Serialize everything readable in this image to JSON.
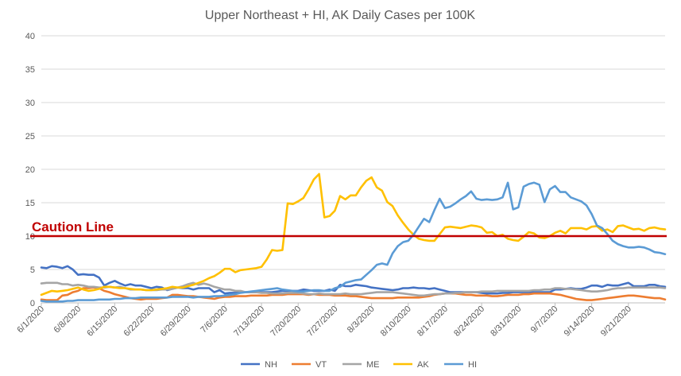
{
  "chart_data": {
    "type": "line",
    "title": "Upper Northeast + HI, AK Daily Cases per 100K",
    "xlabel": "",
    "ylabel": "",
    "ylim": [
      0,
      40
    ],
    "yticks": [
      0,
      5,
      10,
      15,
      20,
      25,
      30,
      35,
      40
    ],
    "grid": "horizontal",
    "legend_position": "bottom",
    "x_start": "2020-06-01",
    "xtick_labels": [
      "6/1/2020",
      "6/8/2020",
      "6/15/2020",
      "6/22/2020",
      "6/29/2020",
      "7/6/2020",
      "7/13/2020",
      "7/20/2020",
      "7/27/2020",
      "8/3/2020",
      "8/10/2020",
      "8/17/2020",
      "8/24/2020",
      "8/31/2020",
      "9/7/2020",
      "9/14/2020",
      "9/21/2020"
    ],
    "reference_line": {
      "label": "Caution Line",
      "value": 10,
      "color": "#c00000"
    },
    "series": [
      {
        "name": "NH",
        "color": "#4472c4",
        "values": [
          5.3,
          5.2,
          5.5,
          5.4,
          5.2,
          5.5,
          5.0,
          4.2,
          4.3,
          4.2,
          4.2,
          3.8,
          2.6,
          3.0,
          3.3,
          2.9,
          2.6,
          2.8,
          2.6,
          2.6,
          2.4,
          2.2,
          2.4,
          2.3,
          1.9,
          2.1,
          2.3,
          2.2,
          2.2,
          2.0,
          2.2,
          2.2,
          2.2,
          1.6,
          1.9,
          1.4,
          1.5,
          1.5,
          1.6,
          1.6,
          1.6,
          1.6,
          1.6,
          1.6,
          1.6,
          1.7,
          1.8,
          1.8,
          1.8,
          1.8,
          2.0,
          1.9,
          1.8,
          1.8,
          1.8,
          2.0,
          1.8,
          2.7,
          2.5,
          2.5,
          2.7,
          2.6,
          2.5,
          2.3,
          2.2,
          2.1,
          2.0,
          1.9,
          2.0,
          2.2,
          2.2,
          2.3,
          2.2,
          2.2,
          2.1,
          2.2,
          2.0,
          1.8,
          1.6,
          1.6,
          1.6,
          1.6,
          1.6,
          1.6,
          1.5,
          1.4,
          1.4,
          1.4,
          1.5,
          1.5,
          1.6,
          1.6,
          1.6,
          1.6,
          1.6,
          1.6,
          1.6,
          1.6,
          2.0,
          2.0,
          2.1,
          2.2,
          2.1,
          2.1,
          2.3,
          2.6,
          2.6,
          2.4,
          2.7,
          2.6,
          2.6,
          2.8,
          3.0,
          2.5,
          2.5,
          2.5,
          2.7,
          2.7,
          2.5,
          2.4
        ]
      },
      {
        "name": "VT",
        "color": "#ed7d31",
        "values": [
          0.5,
          0.4,
          0.4,
          0.4,
          1.1,
          1.2,
          1.6,
          1.8,
          2.2,
          2.2,
          2.3,
          2.2,
          1.8,
          1.6,
          1.3,
          1.1,
          0.9,
          0.7,
          0.6,
          0.5,
          0.6,
          0.6,
          0.6,
          0.7,
          0.8,
          1.2,
          1.2,
          1.1,
          1.0,
          1.0,
          0.9,
          0.8,
          0.7,
          0.6,
          0.8,
          0.9,
          0.9,
          1.0,
          1.0,
          1.0,
          1.1,
          1.1,
          1.1,
          1.1,
          1.2,
          1.2,
          1.2,
          1.3,
          1.3,
          1.3,
          1.3,
          1.2,
          1.3,
          1.2,
          1.2,
          1.2,
          1.1,
          1.1,
          1.1,
          1.0,
          1.0,
          0.9,
          0.8,
          0.7,
          0.7,
          0.7,
          0.7,
          0.7,
          0.8,
          0.8,
          0.8,
          0.8,
          0.8,
          0.9,
          1.0,
          1.2,
          1.3,
          1.4,
          1.4,
          1.4,
          1.3,
          1.2,
          1.2,
          1.1,
          1.1,
          1.1,
          1.0,
          1.0,
          1.1,
          1.2,
          1.2,
          1.2,
          1.3,
          1.3,
          1.4,
          1.4,
          1.4,
          1.4,
          1.3,
          1.2,
          1.0,
          0.8,
          0.6,
          0.5,
          0.4,
          0.4,
          0.5,
          0.6,
          0.7,
          0.8,
          0.9,
          1.0,
          1.1,
          1.1,
          1.0,
          0.9,
          0.8,
          0.7,
          0.7,
          0.5
        ]
      },
      {
        "name": "ME",
        "color": "#a5a5a5",
        "values": [
          2.9,
          3.0,
          3.0,
          3.0,
          2.8,
          2.8,
          2.6,
          2.7,
          2.6,
          2.4,
          2.4,
          2.3,
          2.3,
          2.4,
          2.3,
          2.4,
          2.2,
          2.0,
          2.0,
          2.0,
          1.9,
          1.9,
          1.9,
          2.0,
          2.0,
          2.1,
          2.3,
          2.5,
          2.8,
          3.0,
          2.7,
          2.9,
          2.7,
          2.4,
          2.2,
          2.0,
          2.0,
          1.8,
          1.8,
          1.6,
          1.6,
          1.6,
          1.5,
          1.5,
          1.4,
          1.4,
          1.4,
          1.5,
          1.5,
          1.5,
          1.4,
          1.3,
          1.3,
          1.4,
          1.3,
          1.3,
          1.3,
          1.3,
          1.4,
          1.3,
          1.3,
          1.3,
          1.4,
          1.5,
          1.6,
          1.6,
          1.6,
          1.6,
          1.5,
          1.4,
          1.3,
          1.2,
          1.1,
          1.1,
          1.2,
          1.3,
          1.3,
          1.4,
          1.4,
          1.5,
          1.5,
          1.6,
          1.6,
          1.6,
          1.7,
          1.7,
          1.7,
          1.8,
          1.8,
          1.8,
          1.8,
          1.8,
          1.8,
          1.8,
          1.9,
          1.9,
          2.0,
          2.0,
          2.2,
          2.2,
          2.1,
          2.1,
          2.0,
          1.9,
          1.8,
          1.7,
          1.7,
          1.8,
          1.9,
          2.1,
          2.2,
          2.2,
          2.3,
          2.3,
          2.3,
          2.3,
          2.3,
          2.3,
          2.3,
          2.2
        ]
      },
      {
        "name": "AK",
        "color": "#ffc000",
        "values": [
          1.2,
          1.5,
          1.8,
          1.7,
          1.8,
          1.9,
          2.1,
          2.3,
          2.0,
          1.8,
          1.9,
          2.1,
          2.4,
          2.4,
          2.3,
          2.2,
          2.2,
          2.1,
          2.0,
          2.0,
          1.9,
          1.9,
          2.0,
          2.1,
          2.2,
          2.4,
          2.3,
          2.3,
          2.5,
          2.7,
          3.0,
          3.3,
          3.7,
          4.0,
          4.5,
          5.1,
          5.1,
          4.6,
          4.9,
          5.0,
          5.1,
          5.2,
          5.4,
          6.5,
          7.9,
          7.8,
          7.9,
          14.9,
          14.8,
          15.2,
          15.7,
          17.0,
          18.5,
          19.3,
          12.8,
          13.0,
          13.8,
          16.0,
          15.5,
          16.1,
          16.1,
          17.3,
          18.3,
          18.8,
          17.3,
          16.8,
          15.1,
          14.5,
          13.1,
          12.0,
          11.0,
          10.2,
          9.6,
          9.4,
          9.3,
          9.3,
          10.3,
          11.3,
          11.4,
          11.3,
          11.2,
          11.4,
          11.6,
          11.5,
          11.3,
          10.5,
          10.6,
          10.0,
          10.2,
          9.6,
          9.4,
          9.3,
          9.9,
          10.6,
          10.4,
          9.8,
          9.7,
          10.0,
          10.5,
          10.8,
          10.4,
          11.2,
          11.2,
          11.2,
          11.0,
          11.4,
          11.5,
          10.8,
          11.0,
          10.6,
          11.5,
          11.6,
          11.3,
          11.0,
          11.1,
          10.8,
          11.2,
          11.3,
          11.1,
          11.0
        ]
      },
      {
        "name": "HI",
        "color": "#5b9bd5",
        "values": [
          0.3,
          0.2,
          0.2,
          0.2,
          0.2,
          0.3,
          0.3,
          0.4,
          0.4,
          0.4,
          0.4,
          0.5,
          0.5,
          0.5,
          0.6,
          0.6,
          0.7,
          0.7,
          0.7,
          0.8,
          0.8,
          0.8,
          0.8,
          0.8,
          0.8,
          0.9,
          0.9,
          0.9,
          0.9,
          0.8,
          0.9,
          0.9,
          0.9,
          1.0,
          1.0,
          1.1,
          1.2,
          1.3,
          1.5,
          1.6,
          1.7,
          1.8,
          1.9,
          2.0,
          2.1,
          2.2,
          2.0,
          1.9,
          1.8,
          1.7,
          1.7,
          1.8,
          1.9,
          1.9,
          1.8,
          1.8,
          2.2,
          2.4,
          3.0,
          3.2,
          3.4,
          3.5,
          4.2,
          4.9,
          5.7,
          5.9,
          5.7,
          7.4,
          8.5,
          9.1,
          9.3,
          10.2,
          11.4,
          12.6,
          12.1,
          13.9,
          15.6,
          14.2,
          14.4,
          14.9,
          15.5,
          16.0,
          16.7,
          15.6,
          15.4,
          15.5,
          15.4,
          15.5,
          15.8,
          18.0,
          14.0,
          14.3,
          17.4,
          17.8,
          18.0,
          17.7,
          15.1,
          17.0,
          17.5,
          16.6,
          16.6,
          15.8,
          15.5,
          15.2,
          14.6,
          13.3,
          11.6,
          11.2,
          10.3,
          9.3,
          8.8,
          8.5,
          8.3,
          8.3,
          8.4,
          8.3,
          8.0,
          7.6,
          7.5,
          7.3
        ]
      }
    ]
  }
}
